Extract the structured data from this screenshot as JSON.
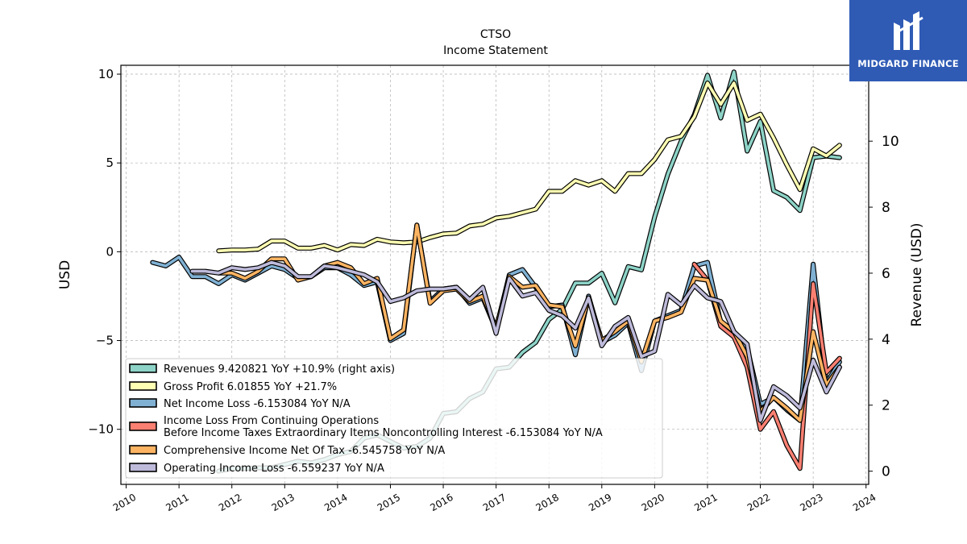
{
  "chart_data": {
    "type": "line",
    "title": "CTSO",
    "subtitle": "Income Statement",
    "ylabel": "USD",
    "ylabel_right": "Revenue (USD)",
    "xlabel": "",
    "ylim": [
      -13.1,
      10.5
    ],
    "ylim_right": [
      -0.4,
      12.3
    ],
    "xlim": [
      2009.9,
      2024.05
    ],
    "grid": true,
    "legend_position": "lower-left",
    "x_ticks": [
      2010,
      2011,
      2012,
      2013,
      2014,
      2015,
      2016,
      2017,
      2018,
      2019,
      2020,
      2021,
      2022,
      2023,
      2024
    ],
    "y_ticks_left": [
      10,
      5,
      0,
      -5,
      -10
    ],
    "y_tick_labels_left": [
      "10",
      "5",
      "0",
      "−5",
      "−10"
    ],
    "y_ticks_right": [
      0,
      2,
      4,
      6,
      8,
      10,
      12
    ],
    "series": [
      {
        "name": "Revenues  9.420821 YoY +10.9% (right axis)",
        "color": "#8dd3c7",
        "axis": "right",
        "x": [
          2011.75,
          2012.0,
          2012.25,
          2012.5,
          2012.75,
          2013.0,
          2013.25,
          2013.5,
          2013.75,
          2014.0,
          2014.25,
          2014.5,
          2014.75,
          2015.0,
          2015.25,
          2015.5,
          2015.75,
          2016.0,
          2016.25,
          2016.5,
          2016.75,
          2017.0,
          2017.25,
          2017.5,
          2017.75,
          2018.0,
          2018.25,
          2018.5,
          2018.75,
          2019.0,
          2019.25,
          2019.5,
          2019.75,
          2020.0,
          2020.25,
          2020.5,
          2020.75,
          2021.0,
          2021.25,
          2021.5,
          2021.75,
          2022.0,
          2022.25,
          2022.5,
          2022.75,
          2023.0,
          2023.25,
          2023.5
        ],
        "y": [
          0.0,
          0.08,
          0.08,
          0.1,
          0.1,
          0.2,
          0.3,
          0.25,
          0.35,
          0.5,
          0.6,
          1.0,
          1.1,
          0.9,
          0.7,
          0.75,
          1.0,
          1.75,
          1.8,
          2.2,
          2.4,
          3.1,
          3.15,
          3.6,
          3.9,
          4.6,
          4.9,
          5.7,
          5.7,
          6.0,
          5.1,
          6.2,
          6.1,
          7.7,
          9.0,
          10.0,
          10.8,
          12.0,
          10.7,
          12.1,
          9.7,
          10.6,
          8.5,
          8.3,
          7.9,
          9.5,
          9.55,
          9.5
        ]
      },
      {
        "name": "Gross Profit  6.01855 YoY +21.7%",
        "color": "#ffffb3",
        "axis": "left",
        "x": [
          2011.75,
          2012.0,
          2012.25,
          2012.5,
          2012.75,
          2013.0,
          2013.25,
          2013.5,
          2013.75,
          2014.0,
          2014.25,
          2014.5,
          2014.75,
          2015.0,
          2015.25,
          2015.5,
          2015.75,
          2016.0,
          2016.25,
          2016.5,
          2016.75,
          2017.0,
          2017.25,
          2017.5,
          2017.75,
          2018.0,
          2018.25,
          2018.5,
          2018.75,
          2019.0,
          2019.25,
          2019.5,
          2019.75,
          2020.0,
          2020.25,
          2020.5,
          2020.75,
          2021.0,
          2021.25,
          2021.5,
          2021.75,
          2022.0,
          2022.25,
          2022.5,
          2022.75,
          2023.0,
          2023.25,
          2023.5
        ],
        "y": [
          0.05,
          0.1,
          0.1,
          0.15,
          0.6,
          0.6,
          0.2,
          0.2,
          0.35,
          0.1,
          0.4,
          0.35,
          0.7,
          0.55,
          0.5,
          0.55,
          0.8,
          1.0,
          1.05,
          1.45,
          1.55,
          1.9,
          2.0,
          2.2,
          2.4,
          3.4,
          3.4,
          4.0,
          3.75,
          4.0,
          3.4,
          4.4,
          4.4,
          5.2,
          6.3,
          6.5,
          7.6,
          9.5,
          8.3,
          9.5,
          7.4,
          7.75,
          6.4,
          4.9,
          3.5,
          5.8,
          5.4,
          6.0
        ]
      },
      {
        "name": "Net Income Loss  -6.153084 YoY N/A",
        "color": "#80b1d3",
        "axis": "left",
        "x": [
          2010.5,
          2010.75,
          2011.0,
          2011.25,
          2011.5,
          2011.75,
          2012.0,
          2012.25,
          2012.5,
          2012.75,
          2013.0,
          2013.25,
          2013.5,
          2013.75,
          2014.0,
          2014.25,
          2014.5,
          2014.75,
          2015.0,
          2015.25,
          2015.5,
          2015.75,
          2016.0,
          2016.25,
          2016.5,
          2016.75,
          2017.0,
          2017.25,
          2017.5,
          2017.75,
          2018.0,
          2018.25,
          2018.5,
          2018.75,
          2019.0,
          2019.25,
          2019.5,
          2019.75,
          2020.0,
          2020.25,
          2020.5,
          2020.75,
          2021.0,
          2021.25,
          2021.5,
          2021.75,
          2022.0,
          2022.25,
          2022.5,
          2022.75,
          2023.0,
          2023.25,
          2023.5
        ],
        "y": [
          -0.6,
          -0.8,
          -0.3,
          -1.4,
          -1.4,
          -1.8,
          -1.3,
          -1.6,
          -1.2,
          -0.8,
          -1.0,
          -1.5,
          -1.4,
          -0.9,
          -0.9,
          -1.3,
          -1.9,
          -1.7,
          -5.0,
          -4.6,
          1.5,
          -2.8,
          -2.1,
          -2.0,
          -2.9,
          -2.6,
          -4.4,
          -1.3,
          -1.0,
          -2.0,
          -3.1,
          -3.0,
          -5.8,
          -2.5,
          -5.1,
          -4.7,
          -4.0,
          -6.7,
          -3.9,
          -3.6,
          -3.3,
          -0.8,
          -0.6,
          -4.0,
          -4.8,
          -5.4,
          -8.6,
          -8.2,
          -8.9,
          -9.5,
          -0.7,
          -7.4,
          -6.2
        ]
      },
      {
        "name": "Income Loss From Continuing Operations\nBefore Income Taxes Extraordinary Items Noncontrolling Interest  -6.153084 YoY N/A",
        "color": "#fb8072",
        "axis": "left",
        "x": [
          2020.75,
          2021.0,
          2021.25,
          2021.5,
          2021.75,
          2022.0,
          2022.25,
          2022.5,
          2022.75,
          2023.0,
          2023.25,
          2023.5
        ],
        "y": [
          -0.7,
          -1.6,
          -4.2,
          -4.8,
          -6.5,
          -10.0,
          -9.0,
          -10.9,
          -12.2,
          -1.8,
          -6.8,
          -6.0
        ]
      },
      {
        "name": "Comprehensive Income Net Of Tax  -6.545758 YoY N/A",
        "color": "#fdb462",
        "axis": "left",
        "x": [
          2011.75,
          2012.0,
          2012.25,
          2012.5,
          2012.75,
          2013.0,
          2013.25,
          2013.5,
          2013.75,
          2014.0,
          2014.25,
          2014.5,
          2014.75,
          2015.0,
          2015.25,
          2015.5,
          2015.75,
          2016.0,
          2016.25,
          2016.5,
          2016.75,
          2017.0,
          2017.25,
          2017.5,
          2017.75,
          2018.0,
          2018.25,
          2018.5,
          2018.75,
          2019.0,
          2019.25,
          2019.5,
          2019.75,
          2020.0,
          2020.25,
          2020.5,
          2020.75,
          2021.0,
          2021.25,
          2021.5,
          2021.75,
          2022.0,
          2022.25,
          2022.5,
          2022.75,
          2023.0,
          2023.25,
          2023.5
        ],
        "y": [
          -1.2,
          -1.2,
          -1.5,
          -1.1,
          -0.4,
          -0.4,
          -1.6,
          -1.4,
          -0.8,
          -0.6,
          -0.9,
          -1.8,
          -1.5,
          -4.9,
          -4.4,
          1.5,
          -2.9,
          -2.2,
          -2.1,
          -2.8,
          -2.5,
          -4.3,
          -1.4,
          -2.0,
          -1.9,
          -3.0,
          -3.1,
          -5.3,
          -2.6,
          -5.0,
          -4.5,
          -3.9,
          -6.2,
          -3.9,
          -3.7,
          -3.4,
          -1.5,
          -1.6,
          -3.9,
          -4.5,
          -5.9,
          -9.0,
          -8.2,
          -8.8,
          -9.5,
          -4.5,
          -7.5,
          -6.5
        ]
      },
      {
        "name": "Operating Income Loss  -6.559237 YoY N/A",
        "color": "#bebada",
        "axis": "left",
        "x": [
          2011.25,
          2011.5,
          2011.75,
          2012.0,
          2012.25,
          2012.5,
          2012.75,
          2013.0,
          2013.25,
          2013.5,
          2013.75,
          2014.0,
          2014.25,
          2014.5,
          2014.75,
          2015.0,
          2015.25,
          2015.5,
          2015.75,
          2016.0,
          2016.25,
          2016.5,
          2016.75,
          2017.0,
          2017.25,
          2017.5,
          2017.75,
          2018.0,
          2018.25,
          2018.5,
          2018.75,
          2019.0,
          2019.25,
          2019.5,
          2019.75,
          2020.0,
          2020.25,
          2020.5,
          2020.75,
          2021.0,
          2021.25,
          2021.5,
          2021.75,
          2022.0,
          2022.25,
          2022.5,
          2022.75,
          2023.0,
          2023.25,
          2023.5
        ],
        "y": [
          -1.1,
          -1.1,
          -1.2,
          -0.9,
          -1.0,
          -0.9,
          -0.6,
          -0.8,
          -1.4,
          -1.4,
          -0.8,
          -0.9,
          -1.1,
          -1.3,
          -1.7,
          -2.8,
          -2.6,
          -2.2,
          -2.1,
          -2.1,
          -2.0,
          -2.7,
          -2.0,
          -4.6,
          -1.5,
          -2.5,
          -2.3,
          -3.3,
          -3.6,
          -4.3,
          -2.6,
          -5.3,
          -4.2,
          -3.7,
          -5.9,
          -5.6,
          -2.4,
          -3.0,
          -1.9,
          -2.6,
          -2.8,
          -4.5,
          -5.2,
          -9.5,
          -7.6,
          -8.1,
          -8.8,
          -6.1,
          -7.9,
          -6.5
        ]
      }
    ]
  },
  "logo": {
    "text": "MIDGARD FINANCE",
    "background": "#2f5bb5"
  }
}
